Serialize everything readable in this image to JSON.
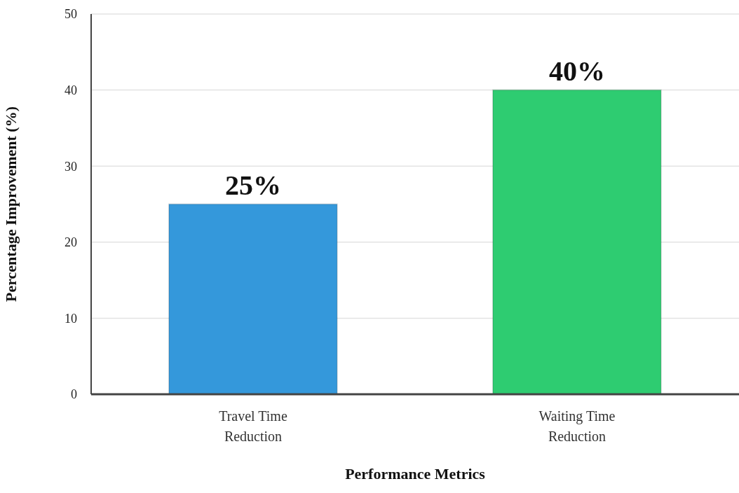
{
  "chart_data": {
    "type": "bar",
    "xlabel": "Performance Metrics",
    "ylabel": "Percentage Improvement (%)",
    "categories": [
      "Travel Time Reduction",
      "Waiting Time Reduction"
    ],
    "values": [
      25,
      40
    ],
    "colors": [
      "#3498db",
      "#2ecc71"
    ],
    "value_labels": [
      "25%",
      "40%"
    ],
    "ylim": [
      0,
      50
    ],
    "yticks": [
      0,
      10,
      20,
      30,
      40,
      50
    ],
    "grid": "y",
    "legend": false
  }
}
